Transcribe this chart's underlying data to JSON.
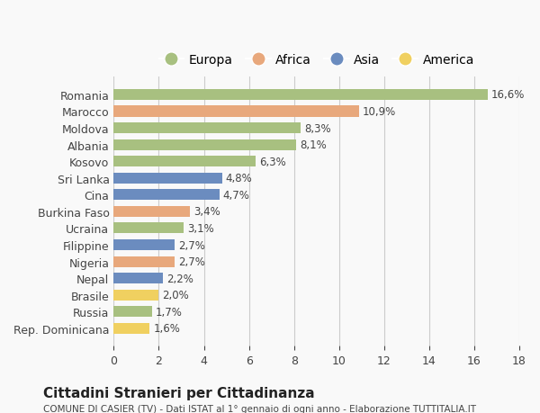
{
  "countries": [
    "Romania",
    "Marocco",
    "Moldova",
    "Albania",
    "Kosovo",
    "Sri Lanka",
    "Cina",
    "Burkina Faso",
    "Ucraina",
    "Filippine",
    "Nigeria",
    "Nepal",
    "Brasile",
    "Russia",
    "Rep. Dominicana"
  ],
  "values": [
    16.6,
    10.9,
    8.3,
    8.1,
    6.3,
    4.8,
    4.7,
    3.4,
    3.1,
    2.7,
    2.7,
    2.2,
    2.0,
    1.7,
    1.6
  ],
  "labels": [
    "16,6%",
    "10,9%",
    "8,3%",
    "8,1%",
    "6,3%",
    "4,8%",
    "4,7%",
    "3,4%",
    "3,1%",
    "2,7%",
    "2,7%",
    "2,2%",
    "2,0%",
    "1,7%",
    "1,6%"
  ],
  "continents": [
    "Europa",
    "Africa",
    "Europa",
    "Europa",
    "Europa",
    "Asia",
    "Asia",
    "Africa",
    "Europa",
    "Asia",
    "Africa",
    "Asia",
    "America",
    "Europa",
    "America"
  ],
  "colors": {
    "Europa": "#a8c080",
    "Africa": "#e8a87c",
    "Asia": "#6b8cbf",
    "America": "#f0d060"
  },
  "legend_order": [
    "Europa",
    "Africa",
    "Asia",
    "America"
  ],
  "title": "Cittadini Stranieri per Cittadinanza",
  "subtitle": "COMUNE DI CASIER (TV) - Dati ISTAT al 1° gennaio di ogni anno - Elaborazione TUTTITALIA.IT",
  "xlim": [
    0,
    18
  ],
  "xticks": [
    0,
    2,
    4,
    6,
    8,
    10,
    12,
    14,
    16,
    18
  ],
  "background_color": "#f9f9f9",
  "grid_color": "#cccccc"
}
